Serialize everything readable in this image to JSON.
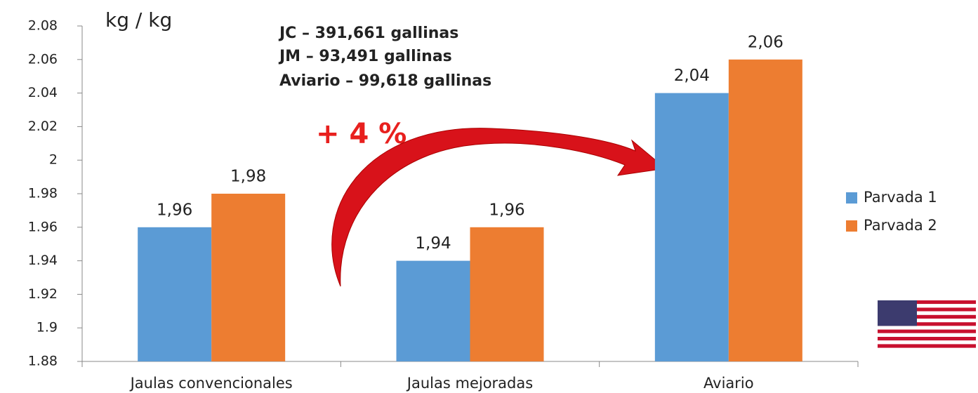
{
  "chart_data": {
    "type": "bar",
    "y_label": "kg / kg",
    "annotations": [
      "JC – 391,661 gallinas",
      "JM – 93,491 gallinas",
      "Aviario – 99,618 gallinas",
      "+ 4 %"
    ],
    "categories": [
      "Jaulas convencionales",
      "Jaulas mejoradas",
      "Aviario"
    ],
    "series": [
      {
        "name": "Parvada 1",
        "color": "#5b9bd5",
        "values": [
          1.96,
          1.94,
          2.04
        ],
        "value_labels": [
          "1,96",
          "1,94",
          "2,04"
        ]
      },
      {
        "name": "Parvada 2",
        "color": "#ed7d31",
        "values": [
          1.98,
          1.96,
          2.06
        ],
        "value_labels": [
          "1,98",
          "1,96",
          "2,06"
        ]
      }
    ],
    "ylim": [
      1.88,
      2.08
    ],
    "yticks": [
      1.88,
      1.9,
      1.92,
      1.94,
      1.96,
      1.98,
      2,
      2.02,
      2.04,
      2.06,
      2.08
    ],
    "grid": false,
    "legend": "right"
  }
}
